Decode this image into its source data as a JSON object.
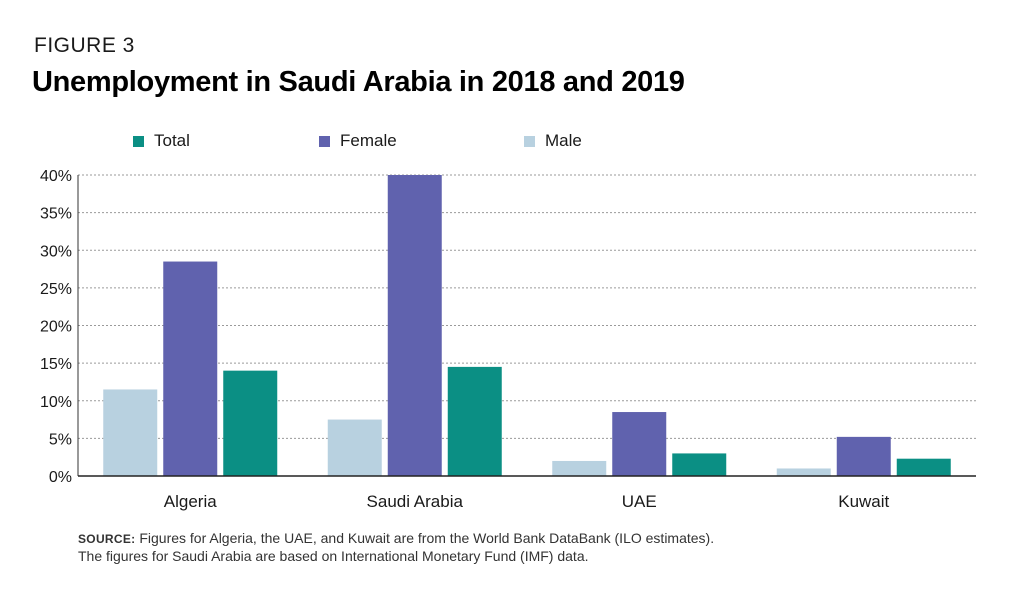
{
  "header": {
    "figure_label": "FIGURE 3",
    "title": "Unemployment in Saudi Arabia in 2018 and 2019"
  },
  "legend": [
    {
      "name": "Total",
      "color": "#0b8f84"
    },
    {
      "name": "Female",
      "color": "#6062ae"
    },
    {
      "name": "Male",
      "color": "#b8d1e0"
    }
  ],
  "source": {
    "label": "SOURCE:",
    "line1": "Figures for Algeria, the UAE, and Kuwait are from the World Bank DataBank (ILO estimates).",
    "line2": "The figures for Saudi Arabia are based on International Monetary Fund (IMF) data."
  },
  "chart_data": {
    "type": "bar",
    "title": "Unemployment in Saudi Arabia in 2018 and 2019",
    "xlabel": "",
    "ylabel": "",
    "categories": [
      "Algeria",
      "Saudi Arabia",
      "UAE",
      "Kuwait"
    ],
    "series": [
      {
        "name": "Male",
        "color": "#b8d1e0",
        "values": [
          11.5,
          7.5,
          2.0,
          1.0
        ]
      },
      {
        "name": "Female",
        "color": "#6062ae",
        "values": [
          28.5,
          40.0,
          8.5,
          5.2
        ]
      },
      {
        "name": "Total",
        "color": "#0b8f84",
        "values": [
          14.0,
          14.5,
          3.0,
          2.3
        ]
      }
    ],
    "ylim": [
      0,
      40
    ],
    "yticks": [
      0,
      5,
      10,
      15,
      20,
      25,
      30,
      35,
      40
    ],
    "ytick_labels": [
      "0%",
      "5%",
      "10%",
      "15%",
      "20%",
      "25%",
      "30%",
      "35%",
      "40%"
    ],
    "grid": true,
    "legend_position": "top"
  }
}
